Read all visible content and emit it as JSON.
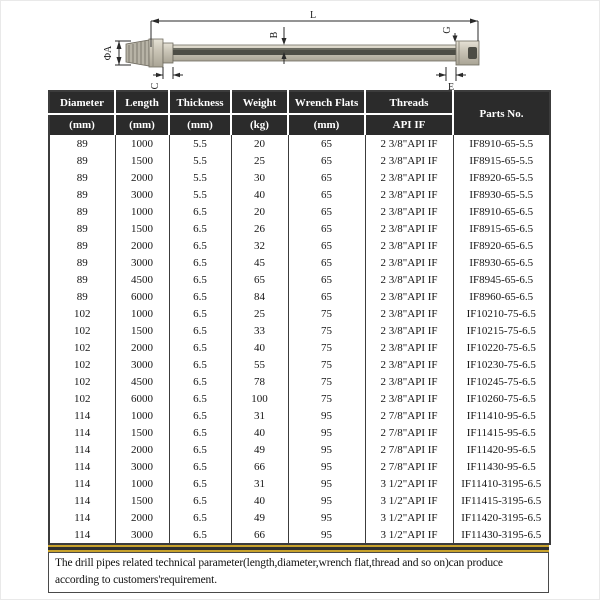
{
  "page": {
    "type": "drill-pipe-specification-sheet"
  },
  "colors": {
    "header_bg": "#2b2b2b",
    "header_text": "#ffffff",
    "grid_line": "#3c3c3c",
    "gold_line": "#c8a22c",
    "body_text": "#141414",
    "pipe_body": "#cdc8ba",
    "pipe_edge": "#8e8a7d",
    "pipe_core": "#4d4d45"
  },
  "diagram": {
    "dimension_labels": {
      "L": "L",
      "B": "B",
      "PhiA": "ΦA",
      "C": "C",
      "G": "G",
      "E": "E"
    }
  },
  "table": {
    "column_keys": [
      "diameter",
      "length",
      "thickness",
      "weight",
      "wrench-flats",
      "threads",
      "parts-no"
    ],
    "headers": [
      {
        "label": "Diameter",
        "unit": "(mm)"
      },
      {
        "label": "Length",
        "unit": "(mm)"
      },
      {
        "label": "Thickness",
        "unit": "(mm)"
      },
      {
        "label": "Weight",
        "unit": "(kg)"
      },
      {
        "label": "Wrench Flats",
        "unit": "(mm)"
      },
      {
        "label": "Threads",
        "unit": "API IF"
      },
      {
        "label": "Parts No.",
        "unit": ""
      }
    ],
    "rows": [
      [
        "89",
        "1000",
        "5.5",
        "20",
        "65",
        "2 3/8\"API IF",
        "IF8910-65-5.5"
      ],
      [
        "89",
        "1500",
        "5.5",
        "25",
        "65",
        "2 3/8\"API IF",
        "IF8915-65-5.5"
      ],
      [
        "89",
        "2000",
        "5.5",
        "30",
        "65",
        "2 3/8\"API IF",
        "IF8920-65-5.5"
      ],
      [
        "89",
        "3000",
        "5.5",
        "40",
        "65",
        "2 3/8\"API IF",
        "IF8930-65-5.5"
      ],
      [
        "89",
        "1000",
        "6.5",
        "20",
        "65",
        "2 3/8\"API IF",
        "IF8910-65-6.5"
      ],
      [
        "89",
        "1500",
        "6.5",
        "26",
        "65",
        "2 3/8\"API IF",
        "IF8915-65-6.5"
      ],
      [
        "89",
        "2000",
        "6.5",
        "32",
        "65",
        "2 3/8\"API IF",
        "IF8920-65-6.5"
      ],
      [
        "89",
        "3000",
        "6.5",
        "45",
        "65",
        "2 3/8\"API IF",
        "IF8930-65-6.5"
      ],
      [
        "89",
        "4500",
        "6.5",
        "65",
        "65",
        "2 3/8\"API IF",
        "IF8945-65-6.5"
      ],
      [
        "89",
        "6000",
        "6.5",
        "84",
        "65",
        "2 3/8\"API IF",
        "IF8960-65-6.5"
      ],
      [
        "102",
        "1000",
        "6.5",
        "25",
        "75",
        "2 3/8\"API IF",
        "IF10210-75-6.5"
      ],
      [
        "102",
        "1500",
        "6.5",
        "33",
        "75",
        "2 3/8\"API IF",
        "IF10215-75-6.5"
      ],
      [
        "102",
        "2000",
        "6.5",
        "40",
        "75",
        "2 3/8\"API IF",
        "IF10220-75-6.5"
      ],
      [
        "102",
        "3000",
        "6.5",
        "55",
        "75",
        "2 3/8\"API IF",
        "IF10230-75-6.5"
      ],
      [
        "102",
        "4500",
        "6.5",
        "78",
        "75",
        "2 3/8\"API IF",
        "IF10245-75-6.5"
      ],
      [
        "102",
        "6000",
        "6.5",
        "100",
        "75",
        "2 3/8\"API IF",
        "IF10260-75-6.5"
      ],
      [
        "114",
        "1000",
        "6.5",
        "31",
        "95",
        "2 7/8\"API IF",
        "IF11410-95-6.5"
      ],
      [
        "114",
        "1500",
        "6.5",
        "40",
        "95",
        "2 7/8\"API IF",
        "IF11415-95-6.5"
      ],
      [
        "114",
        "2000",
        "6.5",
        "49",
        "95",
        "2 7/8\"API IF",
        "IF11420-95-6.5"
      ],
      [
        "114",
        "3000",
        "6.5",
        "66",
        "95",
        "2 7/8\"API IF",
        "IF11430-95-6.5"
      ],
      [
        "114",
        "1000",
        "6.5",
        "31",
        "95",
        "3 1/2\"API IF",
        "IF11410-3195-6.5"
      ],
      [
        "114",
        "1500",
        "6.5",
        "40",
        "95",
        "3 1/2\"API IF",
        "IF11415-3195-6.5"
      ],
      [
        "114",
        "2000",
        "6.5",
        "49",
        "95",
        "3 1/2\"API IF",
        "IF11420-3195-6.5"
      ],
      [
        "114",
        "3000",
        "6.5",
        "66",
        "95",
        "3 1/2\"API IF",
        "IF11430-3195-6.5"
      ]
    ]
  },
  "footer": {
    "note": "The drill pipes related technical parameter(length,diameter,wrench flat,thread and so on)can produce according to customers'requirement."
  }
}
